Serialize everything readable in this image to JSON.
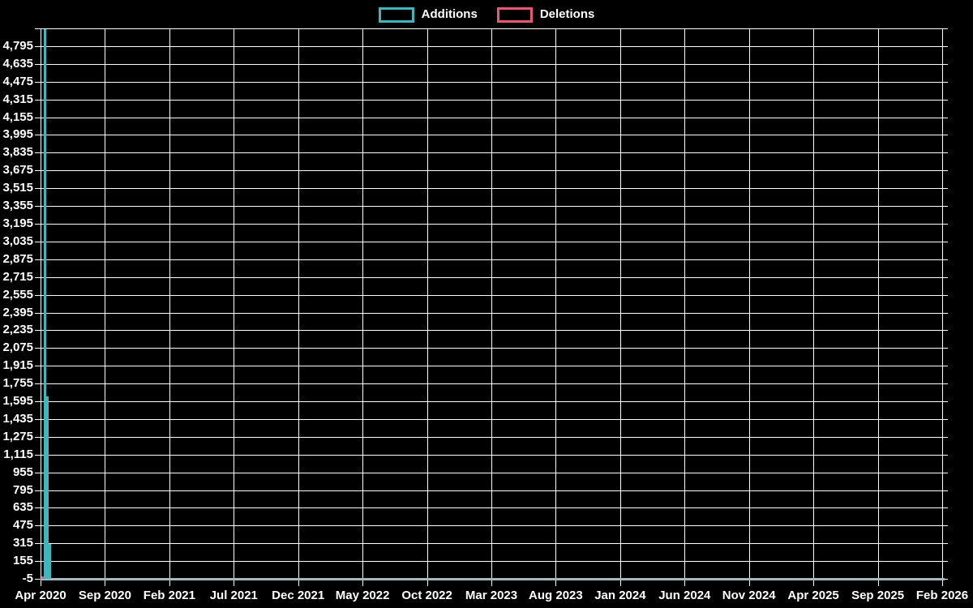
{
  "chart_data": {
    "type": "bar",
    "title": "",
    "legend_position": "top-center",
    "grid": true,
    "colors": {
      "background": "#000000",
      "grid": "#ffffff",
      "axis_line": "#a4b8c0",
      "text": "#ffffff",
      "additions": "#3eb6ba",
      "deletions": "#e95870"
    },
    "y_axis": {
      "min": -5,
      "max": 4955,
      "tick_step": 160,
      "labels": [
        "4,795",
        "4,635",
        "4,475",
        "4,315",
        "4,155",
        "3,995",
        "3,835",
        "3,675",
        "3,515",
        "3,355",
        "3,195",
        "3,035",
        "2,875",
        "2,715",
        "2,555",
        "2,395",
        "2,235",
        "2,075",
        "1,915",
        "1,755",
        "1,595",
        "1,435",
        "1,275",
        "1,115",
        "955",
        "795",
        "635",
        "475",
        "315",
        "155",
        "-5"
      ]
    },
    "x_axis": {
      "labels": [
        "Apr 2020",
        "Sep 2020",
        "Feb 2021",
        "Jul 2021",
        "Dec 2021",
        "May 2022",
        "Oct 2022",
        "Mar 2023",
        "Aug 2023",
        "Jan 2024",
        "Jun 2024",
        "Nov 2024",
        "Apr 2025",
        "Sep 2025",
        "Feb 2026"
      ],
      "note": "weekly bins; all visible bars fall in the first weeks of Apr 2020"
    },
    "series": [
      {
        "name": "Additions",
        "color_key": "additions",
        "bars": [
          {
            "slot": 1,
            "value": 4950
          },
          {
            "slot": 2,
            "value": 1640
          },
          {
            "slot": 3,
            "value": 310
          }
        ]
      },
      {
        "name": "Deletions",
        "color_key": "deletions",
        "bars": [
          {
            "slot": 0,
            "value": 15
          }
        ]
      }
    ]
  }
}
